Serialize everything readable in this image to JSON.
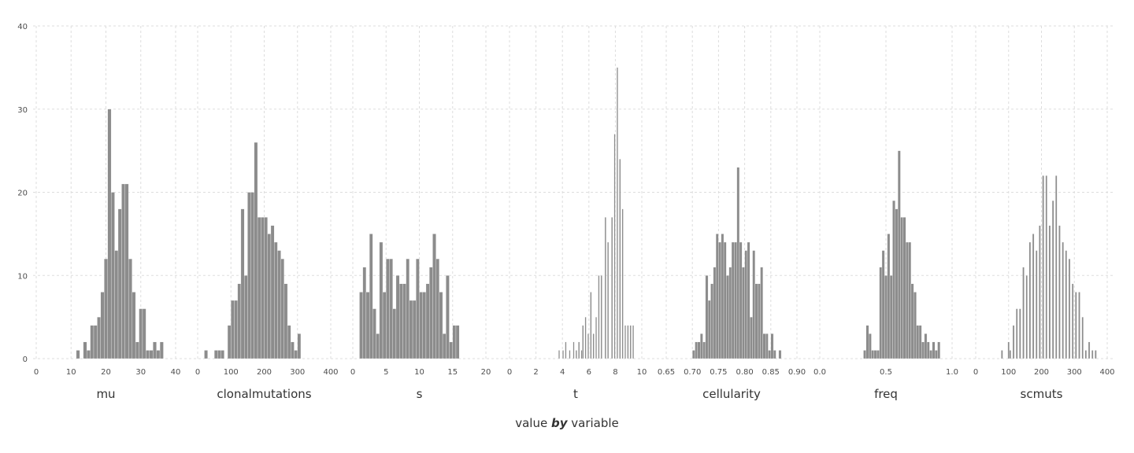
{
  "caption": {
    "prefix": "value ",
    "by": "by",
    "suffix": " variable"
  },
  "chart_data": {
    "type": "bar",
    "subtype": "faceted histogram",
    "bar_color": "#8c8c8c",
    "grid": true,
    "y_ticks": [
      0,
      10,
      20,
      30,
      40
    ],
    "ylim": [
      0,
      40
    ],
    "facets": [
      {
        "name": "mu",
        "xlim": [
          0,
          40
        ],
        "x_ticks": [
          "0",
          "10",
          "20",
          "30",
          "40"
        ],
        "bins": [
          [
            12,
            1
          ],
          [
            13,
            0
          ],
          [
            14,
            2
          ],
          [
            15,
            1
          ],
          [
            16,
            4
          ],
          [
            17,
            4
          ],
          [
            18,
            5
          ],
          [
            19,
            8
          ],
          [
            20,
            12
          ],
          [
            21,
            30
          ],
          [
            22,
            20
          ],
          [
            23,
            13
          ],
          [
            24,
            18
          ],
          [
            25,
            21
          ],
          [
            26,
            21
          ],
          [
            27,
            12
          ],
          [
            28,
            8
          ],
          [
            29,
            2
          ],
          [
            30,
            6
          ],
          [
            31,
            6
          ],
          [
            32,
            1
          ],
          [
            33,
            1
          ],
          [
            34,
            2
          ],
          [
            35,
            1
          ],
          [
            36,
            2
          ]
        ]
      },
      {
        "name": "clonalmutations",
        "xlim": [
          0,
          400
        ],
        "x_ticks": [
          "0",
          "100",
          "200",
          "300",
          "400"
        ],
        "bins": [
          [
            25,
            1
          ],
          [
            55,
            1
          ],
          [
            65,
            1
          ],
          [
            75,
            1
          ],
          [
            95,
            4
          ],
          [
            105,
            7
          ],
          [
            115,
            7
          ],
          [
            125,
            9
          ],
          [
            135,
            18
          ],
          [
            145,
            10
          ],
          [
            155,
            20
          ],
          [
            165,
            20
          ],
          [
            175,
            26
          ],
          [
            185,
            17
          ],
          [
            195,
            17
          ],
          [
            205,
            17
          ],
          [
            215,
            15
          ],
          [
            225,
            16
          ],
          [
            235,
            14
          ],
          [
            245,
            13
          ],
          [
            255,
            12
          ],
          [
            265,
            9
          ],
          [
            275,
            4
          ],
          [
            285,
            2
          ],
          [
            295,
            1
          ],
          [
            305,
            3
          ]
        ]
      },
      {
        "name": "s",
        "xlim": [
          0,
          20
        ],
        "x_ticks": [
          "0",
          "5",
          "10",
          "15",
          "20"
        ],
        "bins": [
          [
            1.25,
            8
          ],
          [
            1.75,
            11
          ],
          [
            2.25,
            8
          ],
          [
            2.75,
            15
          ],
          [
            3.25,
            6
          ],
          [
            3.75,
            3
          ],
          [
            4.25,
            14
          ],
          [
            4.75,
            8
          ],
          [
            5.25,
            12
          ],
          [
            5.75,
            12
          ],
          [
            6.25,
            6
          ],
          [
            6.75,
            10
          ],
          [
            7.25,
            9
          ],
          [
            7.75,
            9
          ],
          [
            8.25,
            12
          ],
          [
            8.75,
            7
          ],
          [
            9.25,
            7
          ],
          [
            9.75,
            12
          ],
          [
            10.25,
            8
          ],
          [
            10.75,
            8
          ],
          [
            11.25,
            9
          ],
          [
            11.75,
            11
          ],
          [
            12.25,
            15
          ],
          [
            12.75,
            12
          ],
          [
            13.25,
            8
          ],
          [
            13.75,
            3
          ],
          [
            14.25,
            10
          ],
          [
            14.75,
            2
          ],
          [
            15.25,
            4
          ],
          [
            15.75,
            4
          ]
        ]
      },
      {
        "name": "t",
        "xlim": [
          0,
          10
        ],
        "x_ticks": [
          "0",
          "2",
          "4",
          "6",
          "8",
          "10"
        ],
        "bins": [
          [
            3.75,
            1
          ],
          [
            4.05,
            1
          ],
          [
            4.25,
            2
          ],
          [
            4.55,
            1
          ],
          [
            4.85,
            2
          ],
          [
            5.05,
            1
          ],
          [
            5.25,
            2
          ],
          [
            5.45,
            1
          ],
          [
            5.55,
            4
          ],
          [
            5.75,
            5
          ],
          [
            5.95,
            3
          ],
          [
            6.15,
            8
          ],
          [
            6.35,
            3
          ],
          [
            6.55,
            5
          ],
          [
            6.75,
            10
          ],
          [
            6.95,
            10
          ],
          [
            7.25,
            17
          ],
          [
            7.45,
            14
          ],
          [
            7.75,
            17
          ],
          [
            7.95,
            27
          ],
          [
            8.15,
            35
          ],
          [
            8.35,
            24
          ],
          [
            8.55,
            18
          ],
          [
            8.75,
            4
          ],
          [
            8.95,
            4
          ],
          [
            9.15,
            4
          ],
          [
            9.35,
            4
          ]
        ]
      },
      {
        "name": "cellularity",
        "xlim": [
          0.65,
          0.9
        ],
        "x_ticks": [
          "0.65",
          "0.70",
          "0.75",
          "0.80",
          "0.85",
          "0.90"
        ],
        "bins": [
          [
            0.7025,
            1
          ],
          [
            0.7075,
            2
          ],
          [
            0.7125,
            2
          ],
          [
            0.7175,
            3
          ],
          [
            0.7225,
            2
          ],
          [
            0.7275,
            10
          ],
          [
            0.7325,
            7
          ],
          [
            0.7375,
            9
          ],
          [
            0.7425,
            11
          ],
          [
            0.7475,
            15
          ],
          [
            0.7525,
            14
          ],
          [
            0.7575,
            15
          ],
          [
            0.7625,
            14
          ],
          [
            0.7675,
            10
          ],
          [
            0.7725,
            11
          ],
          [
            0.7775,
            14
          ],
          [
            0.7825,
            14
          ],
          [
            0.7875,
            23
          ],
          [
            0.7925,
            14
          ],
          [
            0.7975,
            11
          ],
          [
            0.8025,
            13
          ],
          [
            0.8075,
            14
          ],
          [
            0.8125,
            5
          ],
          [
            0.8175,
            13
          ],
          [
            0.8225,
            9
          ],
          [
            0.8275,
            9
          ],
          [
            0.8325,
            11
          ],
          [
            0.8375,
            3
          ],
          [
            0.8425,
            3
          ],
          [
            0.8475,
            1
          ],
          [
            0.8525,
            3
          ],
          [
            0.8575,
            1
          ],
          [
            0.8675,
            1
          ]
        ]
      },
      {
        "name": "freq",
        "xlim": [
          0.0,
          1.0
        ],
        "x_ticks": [
          "0.0",
          "0.5",
          "1.0"
        ],
        "bins": [
          [
            0.34,
            1
          ],
          [
            0.36,
            4
          ],
          [
            0.38,
            3
          ],
          [
            0.4,
            1
          ],
          [
            0.42,
            1
          ],
          [
            0.44,
            1
          ],
          [
            0.46,
            11
          ],
          [
            0.48,
            13
          ],
          [
            0.5,
            10
          ],
          [
            0.52,
            15
          ],
          [
            0.54,
            10
          ],
          [
            0.56,
            19
          ],
          [
            0.58,
            18
          ],
          [
            0.6,
            25
          ],
          [
            0.62,
            17
          ],
          [
            0.64,
            17
          ],
          [
            0.66,
            14
          ],
          [
            0.68,
            14
          ],
          [
            0.7,
            9
          ],
          [
            0.72,
            8
          ],
          [
            0.74,
            4
          ],
          [
            0.76,
            4
          ],
          [
            0.78,
            2
          ],
          [
            0.8,
            3
          ],
          [
            0.82,
            2
          ],
          [
            0.84,
            1
          ],
          [
            0.86,
            2
          ],
          [
            0.88,
            1
          ],
          [
            0.9,
            2
          ]
        ]
      },
      {
        "name": "scmuts",
        "xlim": [
          0,
          400
        ],
        "x_ticks": [
          "0",
          "100",
          "200",
          "300",
          "400"
        ],
        "bins": [
          [
            80,
            1
          ],
          [
            100,
            2
          ],
          [
            105,
            1
          ],
          [
            115,
            4
          ],
          [
            125,
            6
          ],
          [
            135,
            6
          ],
          [
            145,
            11
          ],
          [
            155,
            10
          ],
          [
            165,
            14
          ],
          [
            175,
            15
          ],
          [
            185,
            13
          ],
          [
            195,
            16
          ],
          [
            205,
            22
          ],
          [
            215,
            22
          ],
          [
            225,
            16
          ],
          [
            235,
            19
          ],
          [
            245,
            22
          ],
          [
            255,
            16
          ],
          [
            265,
            14
          ],
          [
            275,
            13
          ],
          [
            285,
            12
          ],
          [
            295,
            9
          ],
          [
            305,
            8
          ],
          [
            315,
            8
          ],
          [
            325,
            5
          ],
          [
            335,
            1
          ],
          [
            345,
            2
          ],
          [
            355,
            1
          ],
          [
            365,
            1
          ]
        ]
      }
    ]
  }
}
